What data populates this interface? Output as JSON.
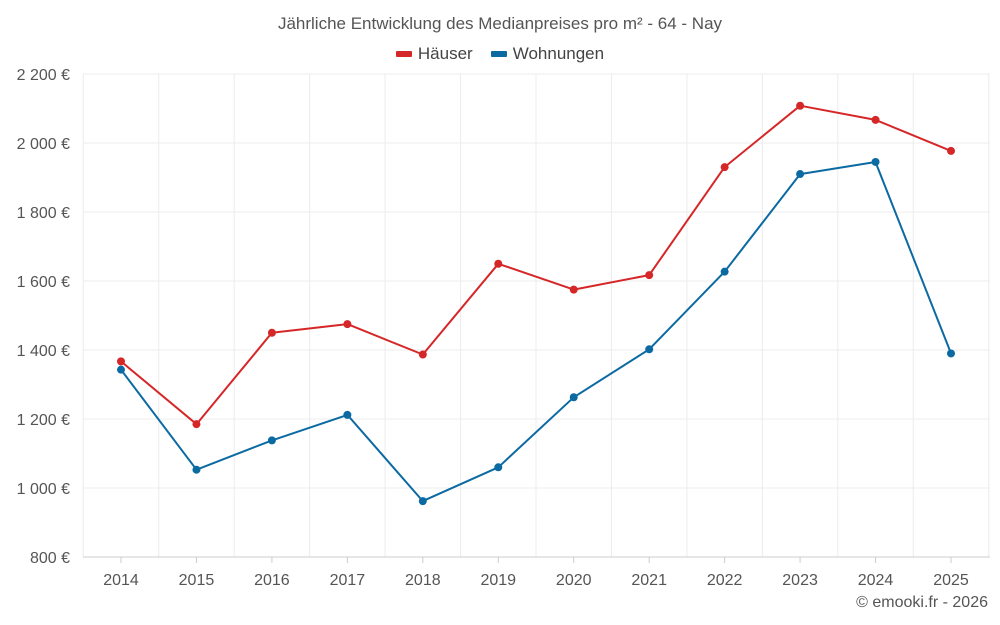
{
  "chart_data": {
    "type": "line",
    "title": "Jährliche Entwicklung des Medianpreises pro m² - 64 - Nay",
    "xlabel": "",
    "ylabel": "",
    "categories": [
      "2014",
      "2015",
      "2016",
      "2017",
      "2018",
      "2019",
      "2020",
      "2021",
      "2022",
      "2023",
      "2024",
      "2025"
    ],
    "series": [
      {
        "name": "Häuser",
        "color": "#d62728",
        "values": [
          1367,
          1185,
          1450,
          1475,
          1387,
          1650,
          1575,
          1617,
          1930,
          2108,
          2067,
          1977
        ]
      },
      {
        "name": "Wohnungen",
        "color": "#0b6aa2",
        "values": [
          1343,
          1053,
          1138,
          1212,
          962,
          1060,
          1263,
          1402,
          1627,
          1910,
          1945,
          1390
        ]
      }
    ],
    "ylim": [
      800,
      2200
    ],
    "yticks": [
      800,
      1000,
      1200,
      1400,
      1600,
      1800,
      2000,
      2200
    ],
    "ytick_labels": [
      "800 €",
      "1 000 €",
      "1 200 €",
      "1 400 €",
      "1 600 €",
      "1 800 €",
      "2 000 €",
      "2 200 €"
    ],
    "grid": true,
    "legend_position": "top-center"
  },
  "credit": "© emooki.fr - 2026"
}
